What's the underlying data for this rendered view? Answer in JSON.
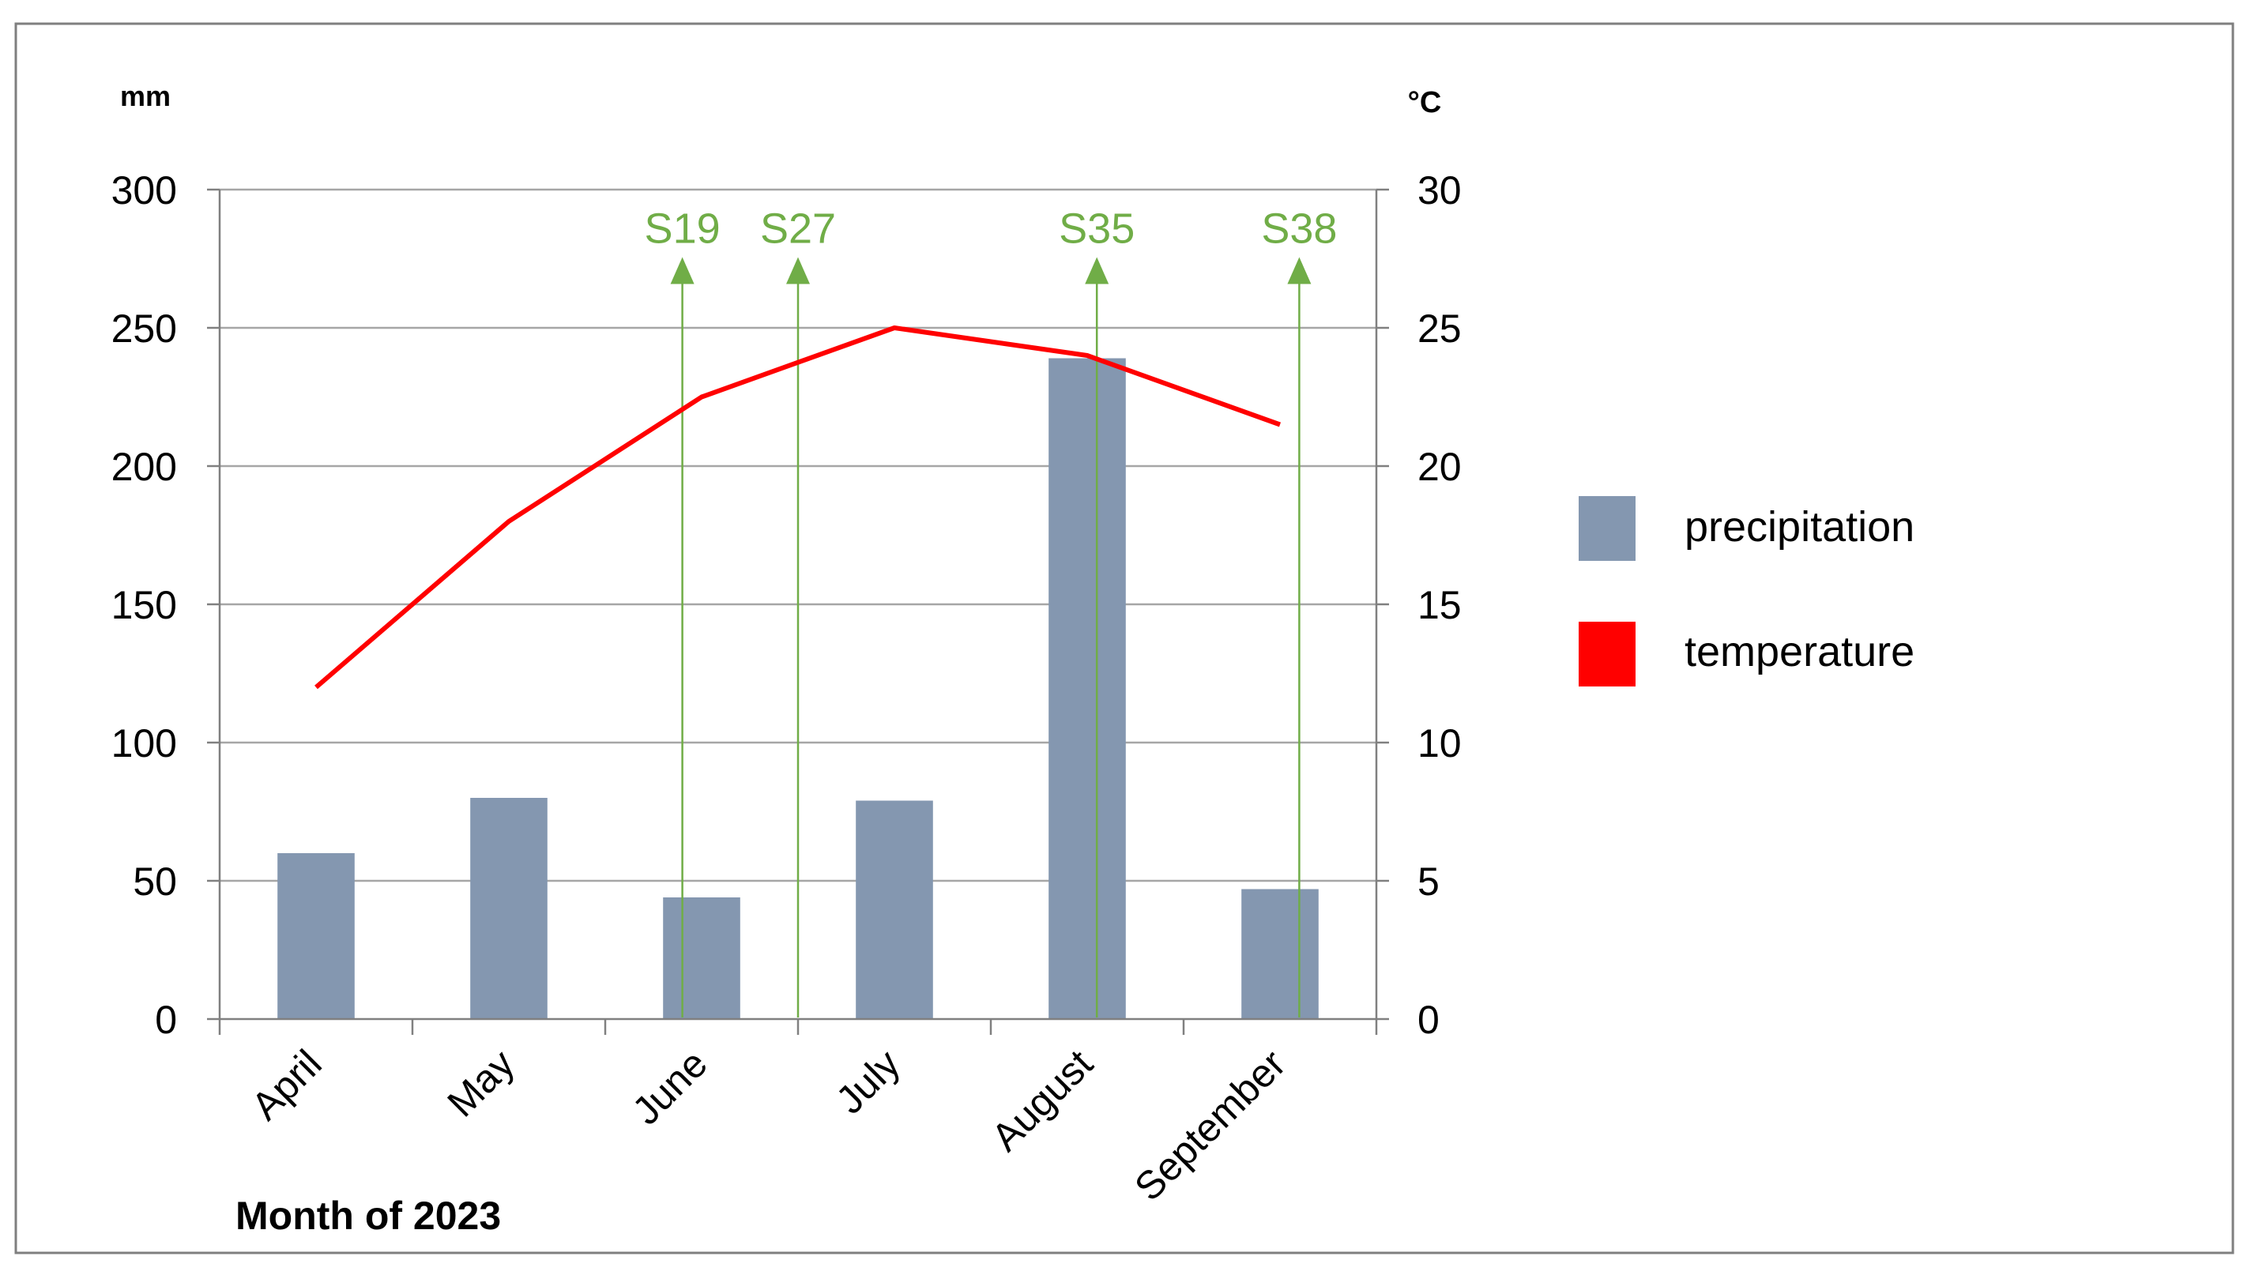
{
  "colors": {
    "precipitation": "#8497B0",
    "temperature": "#FF0000",
    "markers": "#70AD47",
    "gridline": "#A6A6A6",
    "axis": "#808080",
    "text": "#000000"
  },
  "chart_data": {
    "type": "bar",
    "categories": [
      "April",
      "May",
      "June",
      "July",
      "August",
      "September"
    ],
    "series": [
      {
        "name": "precipitation",
        "type": "bar",
        "axis": "left",
        "values": [
          60,
          80,
          44,
          79,
          239,
          47
        ]
      },
      {
        "name": "temperature",
        "type": "line",
        "axis": "right",
        "values": [
          12,
          18,
          22.5,
          25,
          24,
          21.5
        ]
      }
    ],
    "xlabel": "Month of 2023",
    "ylabel_left": "mm",
    "ylabel_right": "°C",
    "ylim_left": [
      0,
      300
    ],
    "ylim_right": [
      0,
      30
    ],
    "yticks_left": [
      "0",
      "50",
      "100",
      "150",
      "200",
      "250",
      "300"
    ],
    "yticks_right": [
      "0",
      "5",
      "10",
      "15",
      "20",
      "25",
      "30"
    ],
    "grid": true,
    "legend_position": "right",
    "legend": [
      "precipitation",
      "temperature"
    ],
    "annotations": [
      {
        "label": "S19",
        "x": 2.4
      },
      {
        "label": "S27",
        "x": 3.0
      },
      {
        "label": "S35",
        "x": 4.55
      },
      {
        "label": "S38",
        "x": 5.6
      }
    ]
  }
}
